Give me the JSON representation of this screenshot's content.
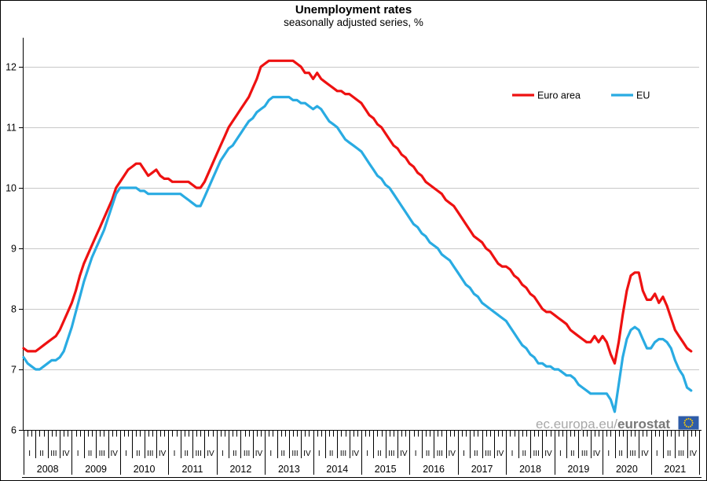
{
  "watermark": {
    "prefix": "ec.europa.eu/",
    "brand": "eurostat",
    "flag_colors": {
      "field": "#2e5ca8",
      "stars": "#ffcc00"
    }
  },
  "chart_data": {
    "type": "line",
    "title": "Unemployment rates",
    "subtitle": "seasonally adjusted series, %",
    "xlabel": "",
    "ylabel": "",
    "x_unit": "month",
    "x_start": "2008-01",
    "x_end": "2021-11",
    "years": [
      2008,
      2009,
      2010,
      2011,
      2012,
      2013,
      2014,
      2015,
      2016,
      2017,
      2018,
      2019,
      2020,
      2021
    ],
    "quarter_tick_labels": [
      "I",
      "II",
      "III",
      "IV"
    ],
    "ylim": [
      6,
      12
    ],
    "yticks": [
      6,
      7,
      8,
      9,
      10,
      11,
      12
    ],
    "grid": "horizontal",
    "legend_position": "inside top right",
    "colors": {
      "grid": "#c8c8c8",
      "axis": "#000000"
    },
    "series": [
      {
        "id": "euro-area",
        "name": "Euro area",
        "color": "#ee1111",
        "values": [
          7.35,
          7.3,
          7.3,
          7.3,
          7.35,
          7.4,
          7.45,
          7.5,
          7.55,
          7.65,
          7.8,
          7.95,
          8.1,
          8.3,
          8.55,
          8.75,
          8.9,
          9.05,
          9.2,
          9.35,
          9.5,
          9.65,
          9.8,
          10.0,
          10.1,
          10.2,
          10.3,
          10.35,
          10.4,
          10.4,
          10.3,
          10.2,
          10.25,
          10.3,
          10.2,
          10.15,
          10.15,
          10.1,
          10.1,
          10.1,
          10.1,
          10.1,
          10.05,
          10.0,
          10.0,
          10.1,
          10.25,
          10.4,
          10.55,
          10.7,
          10.85,
          11.0,
          11.1,
          11.2,
          11.3,
          11.4,
          11.5,
          11.65,
          11.8,
          12.0,
          12.05,
          12.1,
          12.1,
          12.1,
          12.1,
          12.1,
          12.1,
          12.1,
          12.05,
          12.0,
          11.9,
          11.9,
          11.8,
          11.9,
          11.8,
          11.75,
          11.7,
          11.65,
          11.6,
          11.6,
          11.55,
          11.55,
          11.5,
          11.45,
          11.4,
          11.3,
          11.2,
          11.15,
          11.05,
          11.0,
          10.9,
          10.8,
          10.7,
          10.65,
          10.55,
          10.5,
          10.4,
          10.35,
          10.25,
          10.2,
          10.1,
          10.05,
          10.0,
          9.95,
          9.9,
          9.8,
          9.75,
          9.7,
          9.6,
          9.5,
          9.4,
          9.3,
          9.2,
          9.15,
          9.1,
          9.0,
          8.95,
          8.85,
          8.75,
          8.7,
          8.7,
          8.65,
          8.55,
          8.5,
          8.4,
          8.35,
          8.25,
          8.2,
          8.1,
          8.0,
          7.95,
          7.95,
          7.9,
          7.85,
          7.8,
          7.75,
          7.65,
          7.6,
          7.55,
          7.5,
          7.45,
          7.45,
          7.55,
          7.45,
          7.55,
          7.45,
          7.25,
          7.1,
          7.45,
          7.9,
          8.3,
          8.55,
          8.6,
          8.6,
          8.3,
          8.15,
          8.15,
          8.25,
          8.1,
          8.2,
          8.05,
          7.85,
          7.65,
          7.55,
          7.45,
          7.35,
          7.3
        ]
      },
      {
        "id": "eu",
        "name": "EU",
        "color": "#29abe2",
        "values": [
          7.2,
          7.1,
          7.05,
          7.0,
          7.0,
          7.05,
          7.1,
          7.15,
          7.15,
          7.2,
          7.3,
          7.5,
          7.7,
          7.95,
          8.2,
          8.45,
          8.65,
          8.85,
          9.0,
          9.15,
          9.3,
          9.5,
          9.7,
          9.9,
          10.0,
          10.0,
          10.0,
          10.0,
          10.0,
          9.95,
          9.95,
          9.9,
          9.9,
          9.9,
          9.9,
          9.9,
          9.9,
          9.9,
          9.9,
          9.9,
          9.85,
          9.8,
          9.75,
          9.7,
          9.7,
          9.85,
          10.0,
          10.15,
          10.3,
          10.45,
          10.55,
          10.65,
          10.7,
          10.8,
          10.9,
          11.0,
          11.1,
          11.15,
          11.25,
          11.3,
          11.35,
          11.45,
          11.5,
          11.5,
          11.5,
          11.5,
          11.5,
          11.45,
          11.45,
          11.4,
          11.4,
          11.35,
          11.3,
          11.35,
          11.3,
          11.2,
          11.1,
          11.05,
          11.0,
          10.9,
          10.8,
          10.75,
          10.7,
          10.65,
          10.6,
          10.5,
          10.4,
          10.3,
          10.2,
          10.15,
          10.05,
          10.0,
          9.9,
          9.8,
          9.7,
          9.6,
          9.5,
          9.4,
          9.35,
          9.25,
          9.2,
          9.1,
          9.05,
          9.0,
          8.9,
          8.85,
          8.8,
          8.7,
          8.6,
          8.5,
          8.4,
          8.35,
          8.25,
          8.2,
          8.1,
          8.05,
          8.0,
          7.95,
          7.9,
          7.85,
          7.8,
          7.7,
          7.6,
          7.5,
          7.4,
          7.35,
          7.25,
          7.2,
          7.1,
          7.1,
          7.05,
          7.05,
          7.0,
          7.0,
          6.95,
          6.9,
          6.9,
          6.85,
          6.75,
          6.7,
          6.65,
          6.6,
          6.6,
          6.6,
          6.6,
          6.6,
          6.5,
          6.3,
          6.75,
          7.2,
          7.5,
          7.65,
          7.7,
          7.65,
          7.5,
          7.35,
          7.35,
          7.45,
          7.5,
          7.5,
          7.45,
          7.35,
          7.15,
          7.0,
          6.9,
          6.7,
          6.65
        ]
      }
    ]
  }
}
